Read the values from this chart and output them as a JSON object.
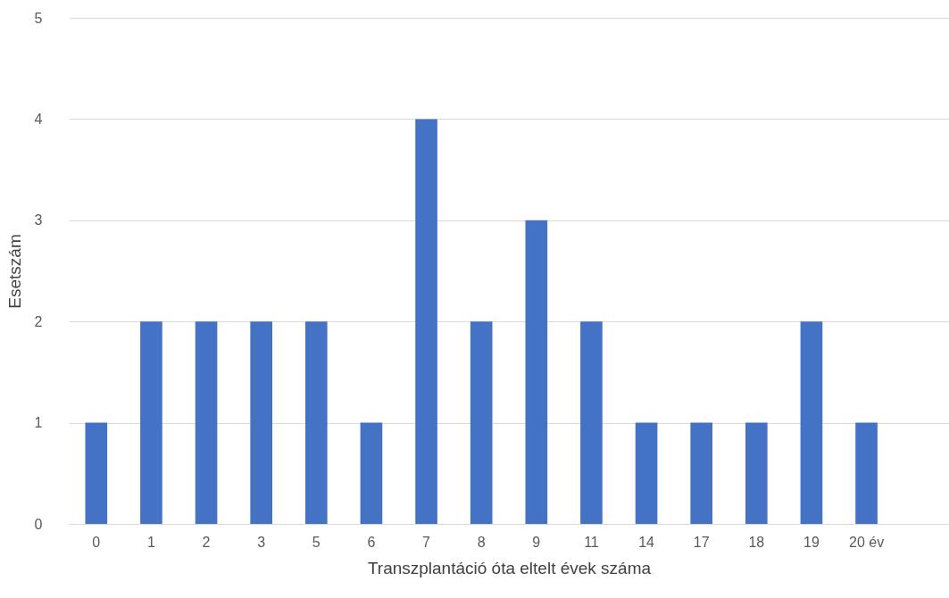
{
  "chart_data": {
    "type": "bar",
    "xlabel": "Transzplantáció óta eltelt évek száma",
    "ylabel": "Esetszám",
    "categories": [
      "0",
      "1",
      "2",
      "3",
      "5",
      "6",
      "7",
      "8",
      "9",
      "11",
      "14",
      "17",
      "18",
      "19",
      "20 év",
      null
    ],
    "values": [
      1,
      2,
      2,
      2,
      2,
      1,
      4,
      2,
      3,
      2,
      1,
      1,
      1,
      2,
      1,
      null
    ],
    "color": "#4472c4",
    "ylim": [
      0,
      5
    ],
    "yticks": [
      0,
      1,
      2,
      3,
      4,
      5
    ],
    "grid": "y",
    "legend": false
  }
}
